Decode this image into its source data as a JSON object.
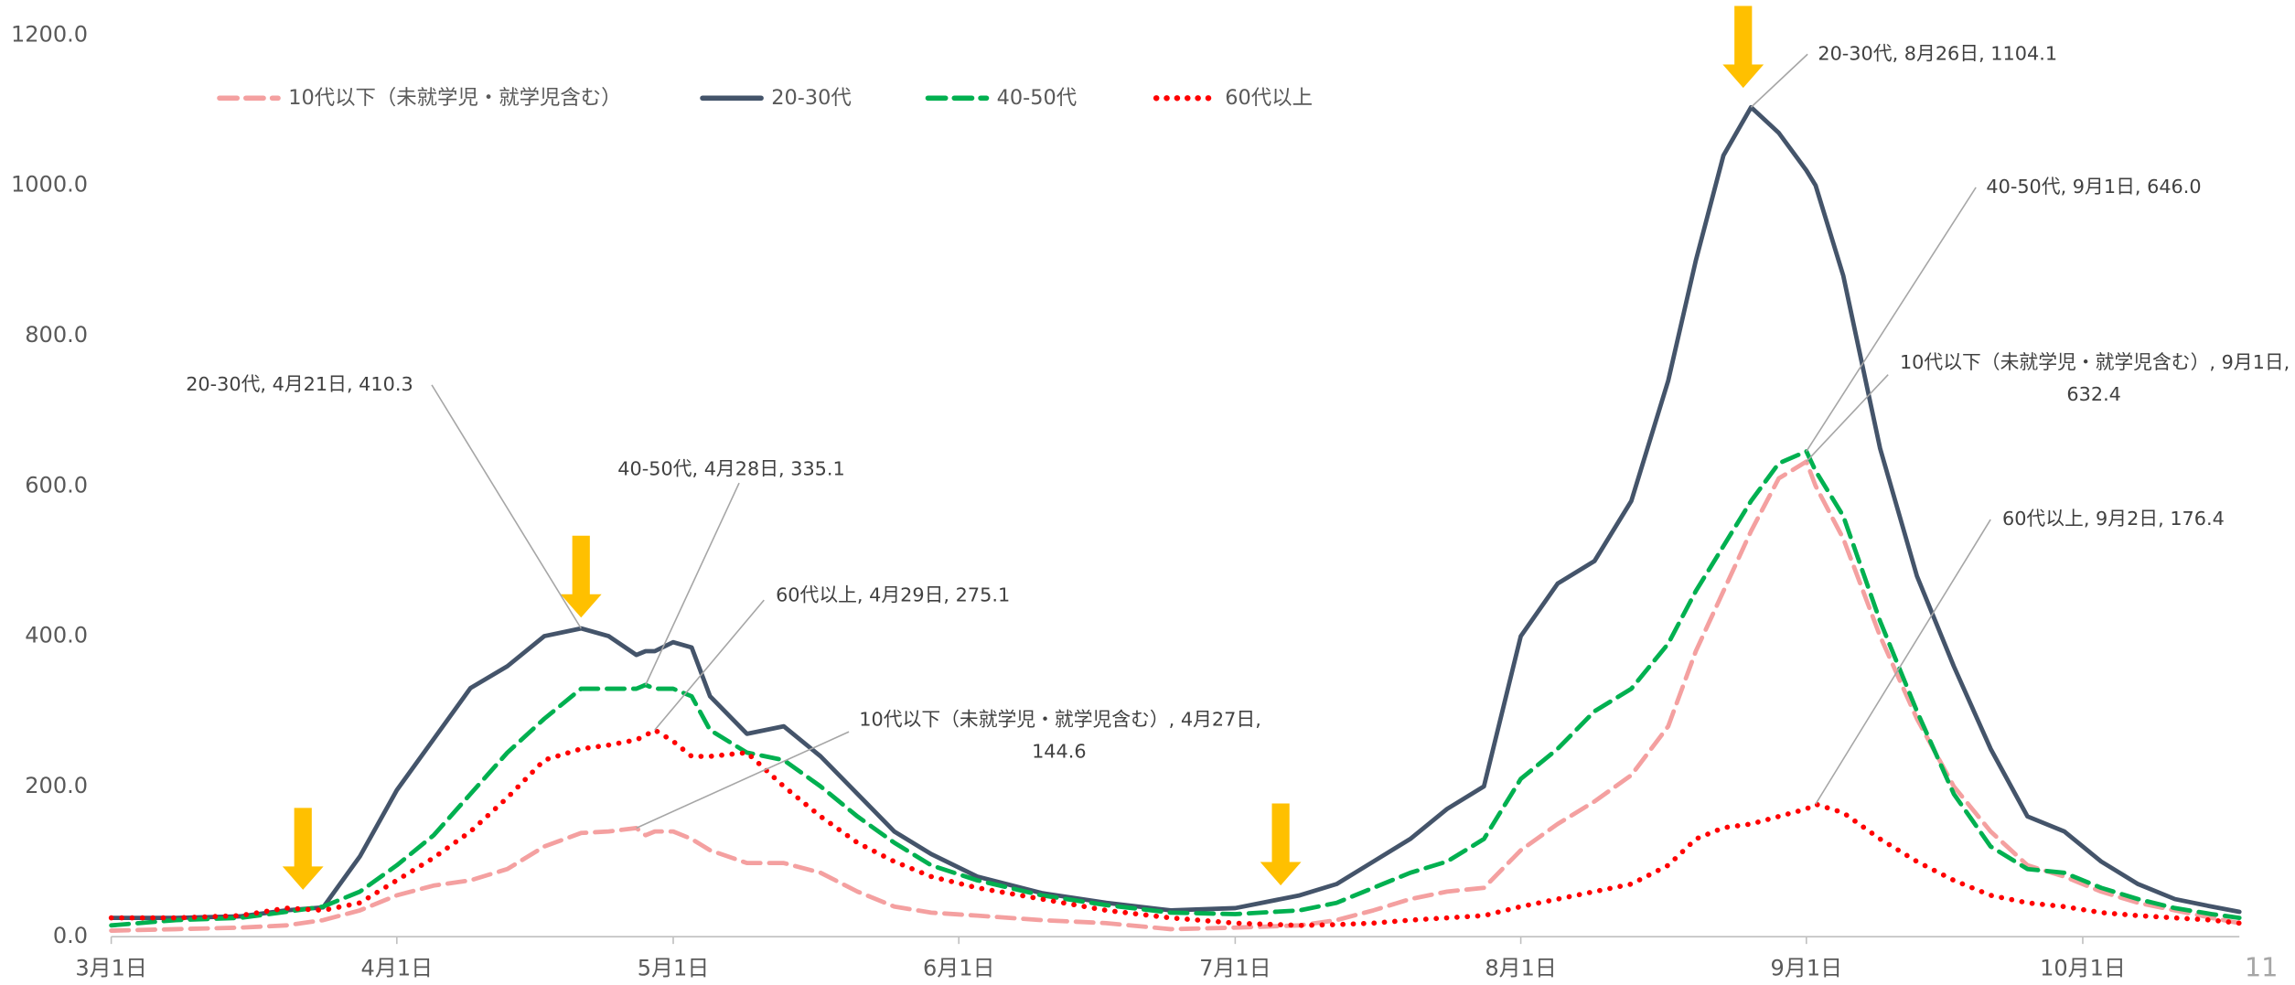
{
  "chart_data": {
    "type": "line",
    "x": [
      "3月1日",
      "3月8日",
      "3月15日",
      "3月20日",
      "3月24日",
      "3月28日",
      "4月1日",
      "4月5日",
      "4月9日",
      "4月13日",
      "4月17日",
      "4月21日",
      "4月24日",
      "4月27日",
      "4月28日",
      "4月29日",
      "5月1日",
      "5月3日",
      "5月5日",
      "5月9日",
      "5月13日",
      "5月17日",
      "5月21日",
      "5月25日",
      "5月29日",
      "6月3日",
      "6月10日",
      "6月17日",
      "6月24日",
      "7月1日",
      "7月8日",
      "7月12日",
      "7月16日",
      "7月20日",
      "7月24日",
      "7月28日",
      "8月1日",
      "8月5日",
      "8月9日",
      "8月13日",
      "8月17日",
      "8月20日",
      "8月23日",
      "8月26日",
      "8月29日",
      "9月1日",
      "9月2日",
      "9月5日",
      "9月9日",
      "9月13日",
      "9月17日",
      "9月21日",
      "9月25日",
      "9月29日",
      "10月3日",
      "10月7日",
      "10月11日",
      "10月15日",
      "10月18日"
    ],
    "xlim": [
      "3月1日",
      "10月18日"
    ],
    "xticks": [
      "3月1日",
      "4月1日",
      "5月1日",
      "6月1日",
      "7月1日",
      "8月1日",
      "9月1日",
      "10月1日"
    ],
    "ylim": [
      0,
      1200
    ],
    "yticks": [
      {
        "value": 0,
        "label": "0.0"
      },
      {
        "value": 200,
        "label": "200.0"
      },
      {
        "value": 400,
        "label": "400.0"
      },
      {
        "value": 600,
        "label": "600.0"
      },
      {
        "value": 800,
        "label": "800.0"
      },
      {
        "value": 1000,
        "label": "1000.0"
      },
      {
        "value": 1200,
        "label": "1200.0"
      }
    ],
    "grid": false,
    "legend": "top",
    "series": [
      {
        "name": "10代以下（未就学児・就学児含む）",
        "color": "#f4a0a0",
        "style": "dashed",
        "values": [
          8,
          10,
          12,
          15,
          22,
          35,
          55,
          68,
          75,
          90,
          120,
          138,
          140,
          144.6,
          135,
          140,
          140,
          130,
          115,
          98,
          98,
          85,
          60,
          40,
          32,
          28,
          22,
          18,
          10,
          12,
          15,
          22,
          35,
          50,
          60,
          65,
          115,
          150,
          180,
          215,
          280,
          380,
          460,
          540,
          610,
          632.4,
          600,
          530,
          400,
          290,
          200,
          140,
          95,
          80,
          60,
          45,
          35,
          25,
          18
        ],
        "value_labels": [
          null,
          null,
          null,
          null,
          null,
          null,
          null,
          null,
          null,
          null,
          null,
          null,
          null,
          "10代以下（未就学児・就学児含む）, 4月27日, 144.6",
          null,
          null,
          null,
          null,
          null,
          null,
          null,
          null,
          null,
          null,
          null,
          null,
          null,
          null,
          null,
          null,
          null,
          null,
          null,
          null,
          null,
          null,
          null,
          null,
          null,
          null,
          null,
          null,
          null,
          null,
          null,
          "10代以下（未就学児・就学児含む）, 9月1日, 632.4",
          null,
          null,
          null,
          null,
          null,
          null,
          null,
          null,
          null,
          null,
          null,
          null,
          null
        ]
      },
      {
        "name": "20-30代",
        "color": "#44546a",
        "style": "solid",
        "values": [
          25,
          25,
          27,
          35,
          39,
          107,
          195,
          263,
          331,
          360,
          400,
          410.3,
          400,
          375,
          380,
          380,
          392,
          385,
          320,
          270,
          280,
          240,
          190,
          140,
          110,
          80,
          58,
          45,
          35,
          38,
          55,
          70,
          100,
          130,
          170,
          200,
          400,
          470,
          500,
          580,
          740,
          900,
          1040,
          1104.1,
          1070,
          1020,
          1000,
          880,
          650,
          480,
          360,
          250,
          160,
          140,
          100,
          70,
          50,
          40,
          33
        ],
        "value_labels": [
          null,
          null,
          null,
          null,
          null,
          null,
          null,
          null,
          null,
          null,
          null,
          "20-30代, 4月21日, 410.3",
          null,
          null,
          null,
          null,
          null,
          null,
          null,
          null,
          null,
          null,
          null,
          null,
          null,
          null,
          null,
          null,
          null,
          null,
          null,
          null,
          null,
          null,
          null,
          null,
          null,
          null,
          null,
          null,
          null,
          null,
          null,
          "20-30代, 8月26日, 1104.1",
          null,
          null,
          null,
          null,
          null,
          null,
          null,
          null,
          null,
          null,
          null,
          null,
          null,
          null,
          null
        ]
      },
      {
        "name": "40-50代",
        "color": "#00b050",
        "style": "dashed",
        "values": [
          15,
          22,
          25,
          33,
          40,
          60,
          95,
          135,
          190,
          245,
          290,
          330,
          330,
          330,
          335.1,
          330,
          330,
          320,
          275,
          245,
          235,
          200,
          160,
          125,
          95,
          75,
          55,
          42,
          32,
          30,
          35,
          45,
          65,
          85,
          100,
          130,
          210,
          250,
          300,
          330,
          390,
          460,
          520,
          580,
          630,
          646.0,
          620,
          560,
          420,
          300,
          190,
          120,
          90,
          85,
          65,
          50,
          38,
          30,
          25
        ],
        "value_labels": [
          null,
          null,
          null,
          null,
          null,
          null,
          null,
          null,
          null,
          null,
          null,
          null,
          null,
          null,
          "40-50代, 4月28日, 335.1",
          null,
          null,
          null,
          null,
          null,
          null,
          null,
          null,
          null,
          null,
          null,
          null,
          null,
          null,
          null,
          null,
          null,
          null,
          null,
          null,
          null,
          null,
          null,
          null,
          null,
          null,
          null,
          null,
          null,
          null,
          "40-50代, 9月1日, 646.0",
          null,
          null,
          null,
          null,
          null,
          null,
          null,
          null,
          null,
          null,
          null,
          null,
          null
        ]
      },
      {
        "name": "60代以上",
        "color": "#ff0000",
        "style": "dotted",
        "values": [
          25,
          25,
          28,
          38,
          35,
          45,
          75,
          105,
          140,
          185,
          235,
          250,
          255,
          262,
          268,
          275.1,
          260,
          240,
          240,
          245,
          200,
          160,
          125,
          100,
          80,
          65,
          50,
          35,
          25,
          18,
          15,
          16,
          18,
          22,
          25,
          28,
          40,
          50,
          60,
          70,
          95,
          130,
          145,
          150,
          160,
          170,
          176.4,
          165,
          130,
          100,
          75,
          55,
          45,
          40,
          32,
          28,
          25,
          22,
          18
        ],
        "value_labels": [
          null,
          null,
          null,
          null,
          null,
          null,
          null,
          null,
          null,
          null,
          null,
          null,
          null,
          null,
          null,
          "60代以上, 4月29日, 275.1",
          null,
          null,
          null,
          null,
          null,
          null,
          null,
          null,
          null,
          null,
          null,
          null,
          null,
          null,
          null,
          null,
          null,
          null,
          null,
          null,
          null,
          null,
          null,
          null,
          null,
          null,
          null,
          null,
          null,
          null,
          "60代以上, 9月2日, 176.4",
          null,
          null,
          null,
          null,
          null,
          null,
          null,
          null,
          null,
          null,
          null,
          null
        ]
      }
    ],
    "page_number": "11"
  }
}
